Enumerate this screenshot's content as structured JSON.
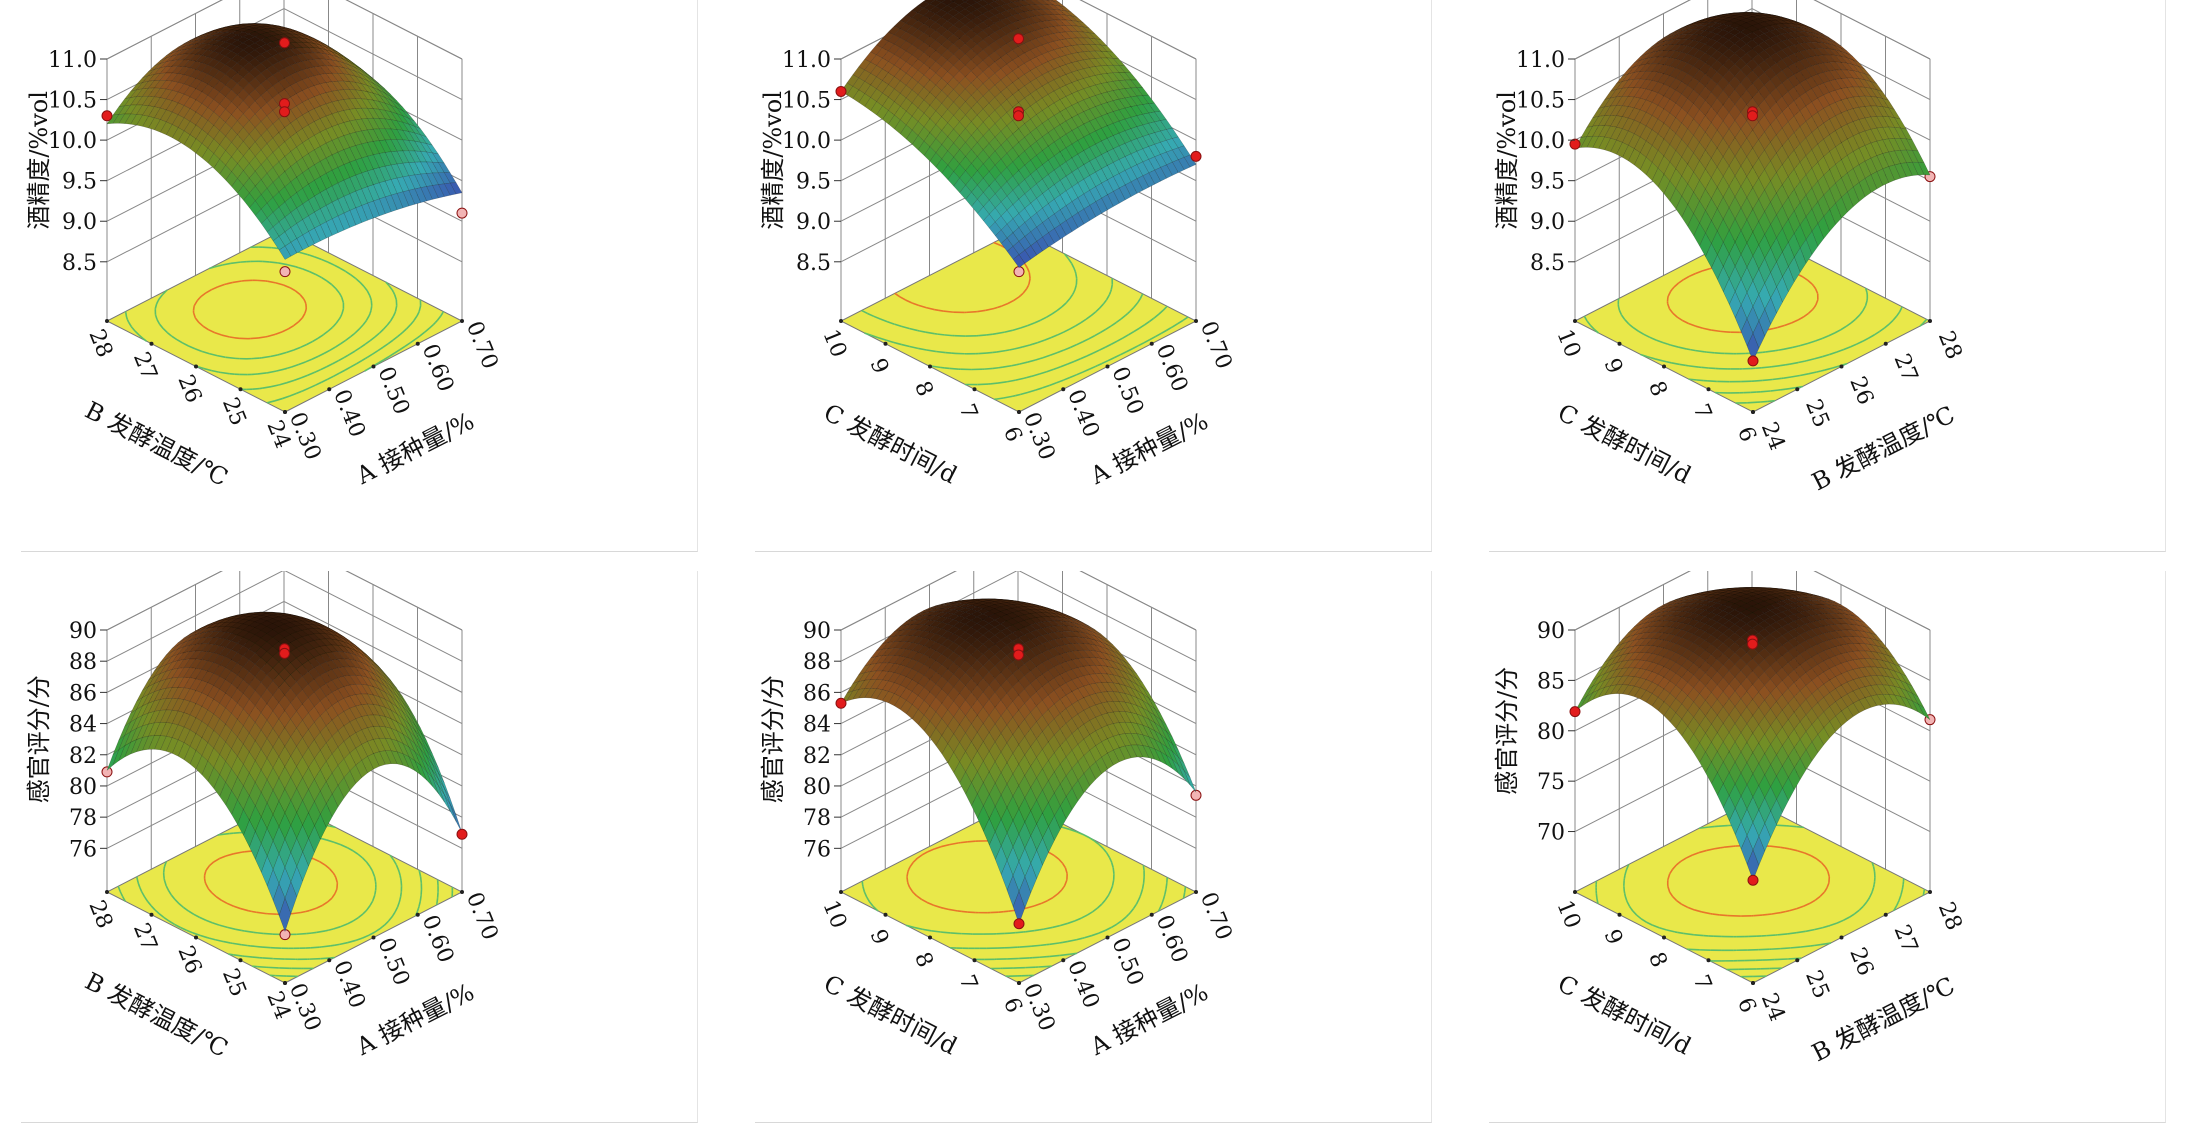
{
  "chart_data": [
    {
      "type": "surface3d",
      "zlabel": "酒精度/%vol",
      "right_axis_label": "A 接种量/%",
      "left_axis_label": "B 发酵温度/℃",
      "right_ticks": [
        "0.30",
        "0.40",
        "0.50",
        "0.60",
        "0.70"
      ],
      "left_ticks": [
        "24",
        "25",
        "26",
        "27",
        "28"
      ],
      "zticks": [
        "8.5",
        "9.0",
        "9.5",
        "10.0",
        "10.5",
        "11.0"
      ],
      "zlim": [
        7.77,
        11.0
      ],
      "grid_z": [
        [
          9.65,
          10.4,
          10.2
        ],
        [
          9.6,
          11.0,
          10.7
        ],
        [
          9.35,
          10.2,
          10.0
        ]
      ],
      "design_points": [
        {
          "u": 0.5,
          "v": 0.5,
          "z": 11.2,
          "above": true
        },
        {
          "u": 0.5,
          "v": 0.5,
          "z": 10.45,
          "above": true
        },
        {
          "u": 0.5,
          "v": 0.5,
          "z": 10.35,
          "above": true
        },
        {
          "u": 0,
          "v": 1,
          "z": 10.3,
          "above": true
        },
        {
          "u": 1,
          "v": 0,
          "z": 9.1,
          "above": false
        },
        {
          "u": 0,
          "v": 0,
          "z": 9.5,
          "above": false
        }
      ]
    },
    {
      "type": "surface3d",
      "zlabel": "酒精度/%vol",
      "right_axis_label": "A 接种量/%",
      "left_axis_label": "C 发酵时间/d",
      "right_ticks": [
        "0.30",
        "0.40",
        "0.50",
        "0.60",
        "0.70"
      ],
      "left_ticks": [
        "6",
        "7",
        "8",
        "9",
        "10"
      ],
      "zticks": [
        "8.5",
        "9.0",
        "9.5",
        "10.0",
        "10.5",
        "11.0"
      ],
      "zlim": [
        7.77,
        11.0
      ],
      "grid_z": [
        [
          9.55,
          10.3,
          10.6
        ],
        [
          9.7,
          10.9,
          11.2
        ],
        [
          9.7,
          10.6,
          10.9
        ]
      ],
      "design_points": [
        {
          "u": 0.5,
          "v": 0.5,
          "z": 11.25,
          "above": true
        },
        {
          "u": 0.5,
          "v": 0.5,
          "z": 10.35,
          "above": true
        },
        {
          "u": 0.5,
          "v": 0.5,
          "z": 10.3,
          "above": true
        },
        {
          "u": 0,
          "v": 1,
          "z": 10.6,
          "above": true
        },
        {
          "u": 1,
          "v": 0,
          "z": 9.8,
          "above": true
        },
        {
          "u": 0,
          "v": 0,
          "z": 9.5,
          "above": false
        }
      ]
    },
    {
      "type": "surface3d",
      "zlabel": "酒精度/%vol",
      "right_axis_label": "B 发酵温度/℃",
      "left_axis_label": "C 发酵时间/d",
      "right_ticks": [
        "24",
        "25",
        "26",
        "27",
        "28"
      ],
      "left_ticks": [
        "6",
        "7",
        "8",
        "9",
        "10"
      ],
      "zticks": [
        "8.5",
        "9.0",
        "9.5",
        "10.0",
        "10.5",
        "11.0"
      ],
      "zlim": [
        7.77,
        11.0
      ],
      "grid_z": [
        [
          8.4,
          9.9,
          9.9
        ],
        [
          9.6,
          11.0,
          10.7
        ],
        [
          9.57,
          10.6,
          10.2
        ]
      ],
      "design_points": [
        {
          "u": 0.5,
          "v": 0.5,
          "z": 10.35,
          "above": true
        },
        {
          "u": 0.5,
          "v": 0.5,
          "z": 10.3,
          "above": true
        },
        {
          "u": 0,
          "v": 1,
          "z": 9.95,
          "above": true
        },
        {
          "u": 1,
          "v": 0,
          "z": 9.55,
          "above": false
        },
        {
          "u": 0,
          "v": 0,
          "z": 8.4,
          "above": true
        }
      ]
    },
    {
      "type": "surface3d",
      "zlabel": "感官评分/分",
      "right_axis_label": "A 接种量/%",
      "left_axis_label": "B 发酵温度/℃",
      "right_ticks": [
        "0.30",
        "0.40",
        "0.50",
        "0.60",
        "0.70"
      ],
      "left_ticks": [
        "24",
        "25",
        "26",
        "27",
        "28"
      ],
      "zticks": [
        "76",
        "78",
        "80",
        "82",
        "84",
        "86",
        "88",
        "90"
      ],
      "zlim": [
        73.2,
        90
      ],
      "grid_z": [
        [
          76.5,
          84,
          81
        ],
        [
          84,
          89.5,
          87
        ],
        [
          77,
          85,
          80
        ]
      ],
      "design_points": [
        {
          "u": 0.5,
          "v": 0.5,
          "z": 88.8,
          "above": true
        },
        {
          "u": 0.5,
          "v": 0.5,
          "z": 88.5,
          "above": true
        },
        {
          "u": 0,
          "v": 1,
          "z": 80.9,
          "above": false
        },
        {
          "u": 1,
          "v": 0,
          "z": 76.9,
          "above": true
        },
        {
          "u": 0,
          "v": 0,
          "z": 76.3,
          "above": false
        }
      ]
    },
    {
      "type": "surface3d",
      "zlabel": "感官评分/分",
      "right_axis_label": "A 接种量/%",
      "left_axis_label": "C 发酵时间/d",
      "right_ticks": [
        "0.30",
        "0.40",
        "0.50",
        "0.60",
        "0.70"
      ],
      "left_ticks": [
        "6",
        "7",
        "8",
        "9",
        "10"
      ],
      "zticks": [
        "76",
        "78",
        "80",
        "82",
        "84",
        "86",
        "88",
        "90"
      ],
      "zlim": [
        73.2,
        90
      ],
      "grid_z": [
        [
          77,
          86,
          85.3
        ],
        [
          84,
          89.5,
          88.5
        ],
        [
          79.6,
          86.5,
          84
        ]
      ],
      "design_points": [
        {
          "u": 0.5,
          "v": 0.5,
          "z": 88.8,
          "above": true
        },
        {
          "u": 0.5,
          "v": 0.5,
          "z": 88.4,
          "above": true
        },
        {
          "u": 0,
          "v": 1,
          "z": 85.3,
          "above": true
        },
        {
          "u": 1,
          "v": 0,
          "z": 79.4,
          "above": false
        },
        {
          "u": 0,
          "v": 0,
          "z": 77.0,
          "above": true
        }
      ]
    },
    {
      "type": "surface3d",
      "zlabel": "感官评分/分",
      "right_axis_label": "B 发酵温度/℃",
      "left_axis_label": "C 发酵时间/d",
      "right_ticks": [
        "24",
        "25",
        "26",
        "27",
        "28"
      ],
      "left_ticks": [
        "6",
        "7",
        "8",
        "9",
        "10"
      ],
      "zticks": [
        "70",
        "75",
        "80",
        "85",
        "90"
      ],
      "zlim": [
        64,
        90
      ],
      "grid_z": [
        [
          74.2,
          86,
          81.9
        ],
        [
          85,
          91,
          88
        ],
        [
          81.1,
          88,
          82
        ]
      ],
      "design_points": [
        {
          "u": 0.5,
          "v": 0.5,
          "z": 89.0,
          "above": true
        },
        {
          "u": 0.5,
          "v": 0.5,
          "z": 88.6,
          "above": true
        },
        {
          "u": 0,
          "v": 1,
          "z": 81.9,
          "above": true
        },
        {
          "u": 1,
          "v": 0,
          "z": 81.1,
          "above": false
        },
        {
          "u": 0,
          "v": 0,
          "z": 74.2,
          "above": true
        }
      ]
    }
  ]
}
